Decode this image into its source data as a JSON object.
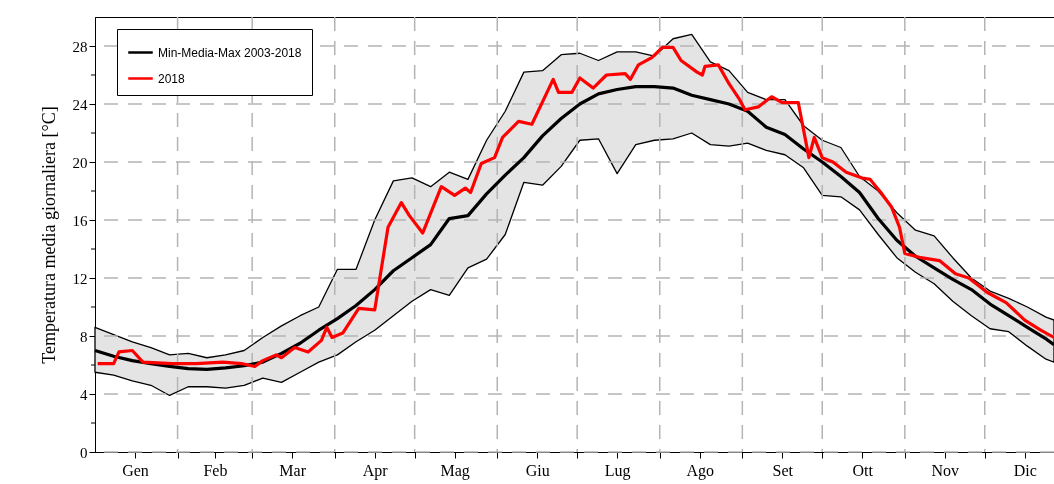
{
  "chart_data": {
    "type": "line",
    "ylabel": "Temperatura media giornaliera [°C]",
    "xlim": [
      "--01-01",
      "--12-27"
    ],
    "ylim": [
      0,
      30
    ],
    "xticks": [
      {
        "value": "--02-01",
        "label": null
      },
      {
        "value": "--03-01",
        "label": null
      },
      {
        "value": "--04-01",
        "label": null
      },
      {
        "value": "--05-01",
        "label": null
      },
      {
        "value": "--06-01",
        "label": null
      },
      {
        "value": "--07-01",
        "label": null
      },
      {
        "value": "--08-01",
        "label": null
      },
      {
        "value": "--09-01",
        "label": null
      },
      {
        "value": "--10-01",
        "label": null
      },
      {
        "value": "--11-01",
        "label": null
      },
      {
        "value": "--12-01",
        "label": null
      },
      {
        "value": "--01-16",
        "label": "Gen"
      },
      {
        "value": "--02-15",
        "label": "Feb"
      },
      {
        "value": "--03-16",
        "label": "Mar"
      },
      {
        "value": "--04-16",
        "label": "Apr"
      },
      {
        "value": "--05-16",
        "label": "Mag"
      },
      {
        "value": "--06-16",
        "label": "Giu"
      },
      {
        "value": "--07-16",
        "label": "Lug"
      },
      {
        "value": "--08-16",
        "label": "Ago"
      },
      {
        "value": "--09-16",
        "label": "Set"
      },
      {
        "value": "--10-16",
        "label": "Ott"
      },
      {
        "value": "--11-16",
        "label": "Nov"
      },
      {
        "value": "--12-16",
        "label": "Dic"
      }
    ],
    "yticks": [
      0,
      {
        "value": 2,
        "label": null
      },
      4,
      {
        "value": 6,
        "label": null
      },
      8,
      {
        "value": 10,
        "label": null
      },
      12,
      {
        "value": 14,
        "label": null
      },
      16,
      {
        "value": 18,
        "label": null
      },
      20,
      {
        "value": 22,
        "label": null
      },
      24,
      {
        "value": 26,
        "label": null
      },
      28
    ],
    "grid": true,
    "legend": "top left",
    "series": [
      {
        "name": "Min-Media-Max 2003-2018",
        "color": "#000000",
        "x": [
          "--01-01",
          "--01-08",
          "--01-15",
          "--01-22",
          "--01-29",
          "--02-05",
          "--02-12",
          "--02-19",
          "--02-26",
          "--03-05",
          "--03-12",
          "--03-19",
          "--03-26",
          "--04-02",
          "--04-09",
          "--04-16",
          "--04-23",
          "--04-30",
          "--05-07",
          "--05-14",
          "--05-21",
          "--05-28",
          "--06-04",
          "--06-11",
          "--06-18",
          "--06-25",
          "--07-02",
          "--07-09",
          "--07-16",
          "--07-23",
          "--07-30",
          "--08-06",
          "--08-13",
          "--08-20",
          "--08-27",
          "--09-03",
          "--09-10",
          "--09-17",
          "--09-24",
          "--10-01",
          "--10-08",
          "--10-15",
          "--10-22",
          "--10-29",
          "--11-05",
          "--11-12",
          "--11-19",
          "--11-26",
          "--12-03",
          "--12-10",
          "--12-17",
          "--12-24",
          "--12-27"
        ],
        "values": [
          7.0,
          6.6,
          6.3,
          6.1,
          5.9,
          5.75,
          5.7,
          5.8,
          5.95,
          6.2,
          6.8,
          7.5,
          8.4,
          9.2,
          10.1,
          11.2,
          12.5,
          13.4,
          14.3,
          16.1,
          16.3,
          17.8,
          19.1,
          20.3,
          21.8,
          23.0,
          24.0,
          24.7,
          25.0,
          25.2,
          25.2,
          25.1,
          24.6,
          24.3,
          24.0,
          23.5,
          22.4,
          21.9,
          20.9,
          20.0,
          19.0,
          17.9,
          16.1,
          14.6,
          13.5,
          12.7,
          11.9,
          11.2,
          10.2,
          9.4,
          8.6,
          7.8,
          7.4
        ],
        "lower": [
          5.5,
          5.3,
          4.9,
          4.6,
          3.9,
          4.5,
          4.5,
          4.4,
          4.6,
          5.1,
          4.8,
          5.5,
          6.2,
          6.7,
          7.6,
          8.4,
          9.4,
          10.4,
          11.2,
          10.8,
          12.7,
          13.3,
          15.0,
          18.6,
          18.4,
          19.7,
          21.5,
          21.6,
          19.2,
          21.2,
          21.5,
          21.6,
          22.0,
          21.2,
          21.1,
          21.3,
          20.8,
          20.5,
          19.6,
          17.7,
          17.6,
          16.7,
          15.0,
          13.4,
          12.4,
          11.6,
          10.4,
          9.4,
          8.5,
          8.3,
          7.3,
          6.4,
          6.2
        ],
        "upper": [
          8.6,
          8.1,
          7.6,
          7.2,
          6.7,
          6.8,
          6.5,
          6.7,
          7.0,
          7.9,
          8.7,
          9.4,
          10.0,
          12.6,
          12.6,
          16.0,
          18.7,
          18.9,
          18.3,
          19.3,
          18.8,
          21.5,
          23.5,
          26.2,
          26.3,
          27.4,
          27.5,
          27.0,
          27.6,
          27.6,
          27.3,
          28.5,
          28.8,
          26.9,
          26.3,
          24.8,
          24.3,
          24.3,
          22.5,
          21.5,
          21.0,
          19.0,
          18.0,
          16.5,
          15.3,
          14.9,
          13.4,
          12.0,
          11.1,
          10.6,
          10.0,
          9.3,
          9.1
        ]
      },
      {
        "name": "2018",
        "color": "#ff0000",
        "x": [
          "--01-02",
          "--01-08",
          "--01-10",
          "--01-15",
          "--01-19",
          "--01-30",
          "--02-08",
          "--02-18",
          "--02-25",
          "--03-02",
          "--03-05",
          "--03-10",
          "--03-12",
          "--03-17",
          "--03-22",
          "--03-27",
          "--03-29",
          "--03-31",
          "--04-04",
          "--04-10",
          "--04-16",
          "--04-21",
          "--04-26",
          "--04-29",
          "--05-04",
          "--05-11",
          "--05-16",
          "--05-20",
          "--05-22",
          "--05-26",
          "--05-31",
          "--06-03",
          "--06-09",
          "--06-14",
          "--06-22",
          "--06-24",
          "--06-29",
          "--07-02",
          "--07-07",
          "--07-12",
          "--07-19",
          "--07-21",
          "--07-24",
          "--07-29",
          "--08-02",
          "--08-06",
          "--08-09",
          "--08-15",
          "--08-17",
          "--08-18",
          "--08-23",
          "--08-27",
          "--08-31",
          "--09-02",
          "--09-07",
          "--09-12",
          "--09-16",
          "--09-22",
          "--09-26",
          "--09-28",
          "--10-01",
          "--10-05",
          "--10-10",
          "--10-16",
          "--10-19",
          "--10-23",
          "--10-27",
          "--10-30",
          "--11-01",
          "--11-07",
          "--11-14",
          "--11-20",
          "--11-25",
          "--12-02",
          "--12-09",
          "--12-16",
          "--12-22",
          "--12-27"
        ],
        "values": [
          6.1,
          6.1,
          6.9,
          7.0,
          6.2,
          6.1,
          6.1,
          6.2,
          6.1,
          5.9,
          6.3,
          6.7,
          6.5,
          7.2,
          6.9,
          7.7,
          8.6,
          7.9,
          8.2,
          9.9,
          9.8,
          15.5,
          17.2,
          16.3,
          15.1,
          18.3,
          17.7,
          18.2,
          17.9,
          19.9,
          20.3,
          21.7,
          22.8,
          22.6,
          25.7,
          24.8,
          24.8,
          25.8,
          25.1,
          26.0,
          26.1,
          25.7,
          26.7,
          27.2,
          27.9,
          27.9,
          27.0,
          26.2,
          26.0,
          26.6,
          26.7,
          25.4,
          24.3,
          23.6,
          23.8,
          24.5,
          24.1,
          24.1,
          20.3,
          21.7,
          20.3,
          20.0,
          19.3,
          18.9,
          18.8,
          17.9,
          16.9,
          15.5,
          13.7,
          13.4,
          13.2,
          12.3,
          12.0,
          11.0,
          10.3,
          9.1,
          8.4,
          7.9
        ]
      }
    ]
  }
}
